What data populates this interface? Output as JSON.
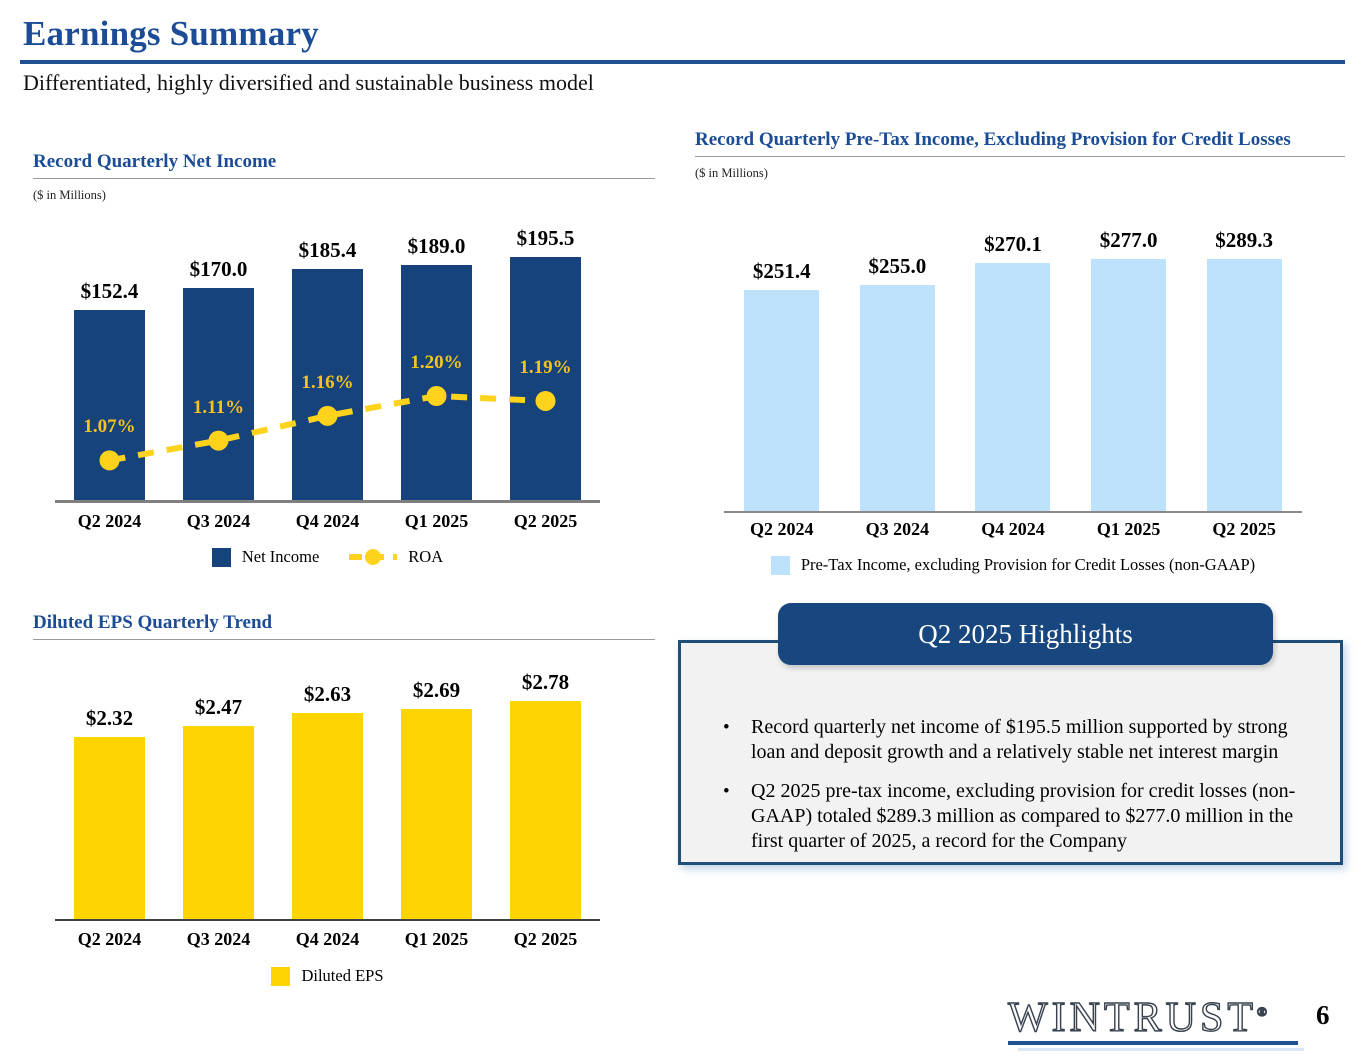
{
  "slide": {
    "title": "Earnings Summary",
    "subtitle": "Differentiated, highly diversified and sustainable business model",
    "page_number": "6",
    "logo_text": "WINTRUST",
    "logo_reg_mark": "®"
  },
  "colors": {
    "navy": "#17437C",
    "title_blue": "#1C4C96",
    "rule_blue": "#1F5191",
    "gold": "#FFD500",
    "gold_line": "#FFD21C",
    "gold_text": "#F6C51D",
    "light_blue": "#BEE2FB",
    "box_border": "#1F4E79",
    "box_bg": "#F2F2F2"
  },
  "chart_data": [
    {
      "id": "net_income",
      "type": "bar",
      "title": "Record Quarterly Net Income",
      "units_note": "($ in Millions)",
      "categories": [
        "Q2 2024",
        "Q3 2024",
        "Q4 2024",
        "Q1 2025",
        "Q2 2025"
      ],
      "series": [
        {
          "name": "Net Income",
          "type": "bar",
          "values": [
            152.4,
            170.0,
            185.4,
            189.0,
            195.5
          ],
          "labels": [
            "$152.4",
            "$170.0",
            "$185.4",
            "$189.0",
            "$195.5"
          ],
          "color": "#17437C"
        },
        {
          "name": "ROA",
          "type": "line",
          "values": [
            1.07,
            1.11,
            1.16,
            1.2,
            1.19
          ],
          "labels": [
            "1.07%",
            "1.11%",
            "1.16%",
            "1.20%",
            "1.19%"
          ],
          "color": "#FFD21C"
        }
      ],
      "ylim": [
        0,
        245
      ],
      "y2lim": [
        0.99,
        1.606
      ],
      "legend": [
        "Net Income",
        "ROA"
      ],
      "legend_position": "bottom",
      "grid": false
    },
    {
      "id": "pretax_income",
      "type": "bar",
      "title": "Record Quarterly Pre-Tax Income, Excluding Provision for Credit Losses",
      "units_note": "($ in Millions)",
      "categories": [
        "Q2 2024",
        "Q3 2024",
        "Q4 2024",
        "Q1 2025",
        "Q2 2025"
      ],
      "series": [
        {
          "name": "Pre-Tax Income, excluding Provision for Credit Losses (non-GAAP)",
          "type": "bar",
          "values": [
            251.4,
            255.0,
            270.1,
            277.0,
            289.3
          ],
          "labels": [
            "$251.4",
            "$255.0",
            "$270.1",
            "$277.0",
            "$289.3"
          ],
          "color": "#BEE2FB"
        }
      ],
      "ylim": [
        95,
        295
      ],
      "legend": [
        "Pre-Tax Income, excluding Provision for Credit Losses (non-GAAP)"
      ],
      "legend_position": "bottom",
      "grid": false
    },
    {
      "id": "diluted_eps",
      "type": "bar",
      "title": "Diluted EPS Quarterly Trend",
      "units_note": "",
      "categories": [
        "Q2 2024",
        "Q3 2024",
        "Q4 2024",
        "Q1 2025",
        "Q2 2025"
      ],
      "series": [
        {
          "name": "Diluted EPS",
          "type": "bar",
          "values": [
            2.32,
            2.47,
            2.63,
            2.69,
            2.78
          ],
          "labels": [
            "$2.32",
            "$2.47",
            "$2.63",
            "$2.69",
            "$2.78"
          ],
          "color": "#FFD500"
        }
      ],
      "ylim": [
        0,
        3.31
      ],
      "legend": [
        "Diluted EPS"
      ],
      "legend_position": "bottom",
      "grid": false
    }
  ],
  "highlights": {
    "header": "Q2 2025 Highlights",
    "bullets": [
      "Record quarterly net income of $195.5 million supported by strong loan and deposit growth and a relatively stable net interest margin",
      "Q2 2025 pre-tax income, excluding provision for credit losses (non-GAAP) totaled $289.3 million as compared to $277.0 million in the first quarter of 2025, a record for the Company"
    ]
  }
}
